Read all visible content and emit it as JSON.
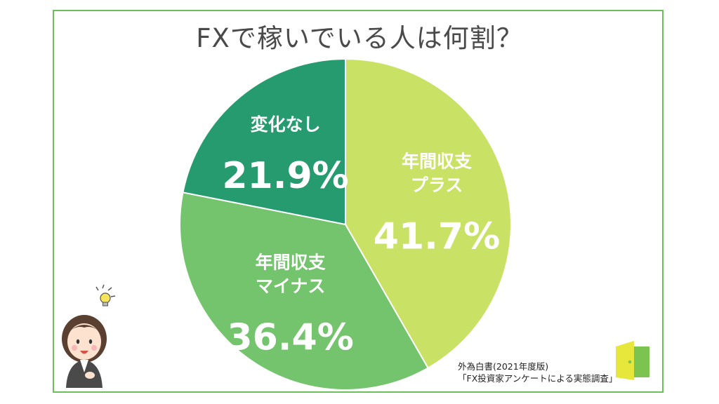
{
  "title": "FXで稼いでいる人は何割？",
  "chart_data": {
    "type": "pie",
    "slices": [
      {
        "label_lines": [
          "年間収支",
          "プラス"
        ],
        "value": 41.7,
        "value_label": "41.7%",
        "color": "#c9e265"
      },
      {
        "label_lines": [
          "年間収支",
          "マイナス"
        ],
        "value": 36.4,
        "value_label": "36.4%",
        "color": "#73c46c"
      },
      {
        "label_lines": [
          "変化なし"
        ],
        "value": 21.9,
        "value_label": "21.9%",
        "color": "#279b70"
      }
    ]
  },
  "source": {
    "line1": "外為白書(2021年度版)",
    "line2": "「FX投資家アンケートによる実態調査」"
  },
  "icons": [
    "person-illustration",
    "lightbulb-icon",
    "door-logo-icon"
  ]
}
